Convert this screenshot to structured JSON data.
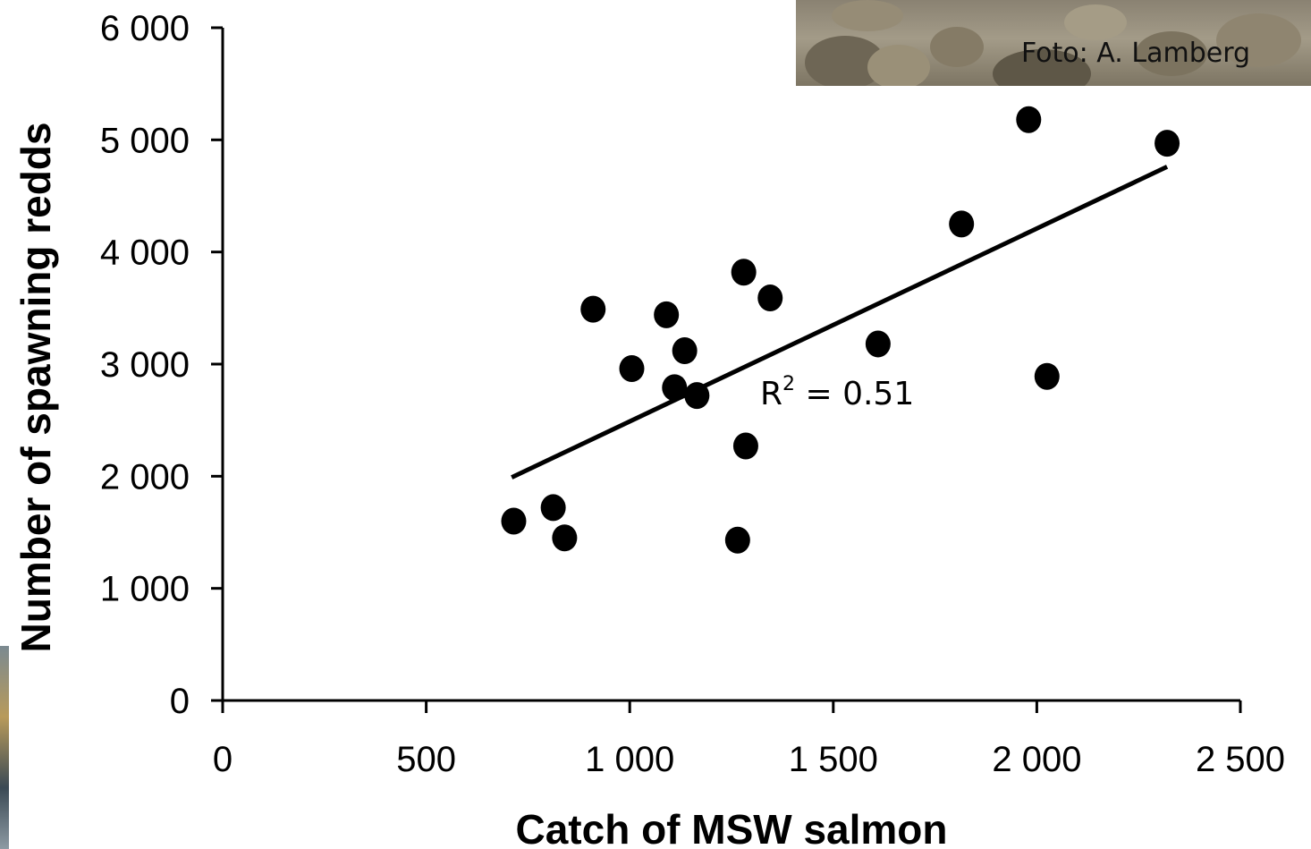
{
  "photo": {
    "credit": "Foto: A. Lamberg"
  },
  "chart_data": {
    "type": "scatter",
    "title": "",
    "xlabel": "Catch of MSW salmon",
    "ylabel": "Number of spawning redds",
    "xlim": [
      0,
      2500
    ],
    "ylim": [
      0,
      6000
    ],
    "xticks": [
      "0",
      "500",
      "1 000",
      "1 500",
      "2 000",
      "2 500"
    ],
    "yticks": [
      "0",
      "1 000",
      "2 000",
      "3 000",
      "4 000",
      "5 000",
      "6 000"
    ],
    "points": [
      {
        "x": 715,
        "y": 1600
      },
      {
        "x": 812,
        "y": 1720
      },
      {
        "x": 840,
        "y": 1450
      },
      {
        "x": 910,
        "y": 3490
      },
      {
        "x": 1005,
        "y": 2960
      },
      {
        "x": 1090,
        "y": 3440
      },
      {
        "x": 1110,
        "y": 2790
      },
      {
        "x": 1135,
        "y": 3120
      },
      {
        "x": 1165,
        "y": 2720
      },
      {
        "x": 1265,
        "y": 1430
      },
      {
        "x": 1280,
        "y": 3820
      },
      {
        "x": 1285,
        "y": 2270
      },
      {
        "x": 1345,
        "y": 3590
      },
      {
        "x": 1610,
        "y": 3180
      },
      {
        "x": 1815,
        "y": 4250
      },
      {
        "x": 1980,
        "y": 5180
      },
      {
        "x": 2025,
        "y": 2890
      },
      {
        "x": 2320,
        "y": 4970
      }
    ],
    "trendline": {
      "x": [
        710,
        2320
      ],
      "y": [
        1990,
        4760
      ]
    },
    "annotation": {
      "label": "R",
      "superscript": "2",
      "text": " = 0.51"
    },
    "grid": false,
    "marker_color": "#000000",
    "line_color": "#000000"
  }
}
